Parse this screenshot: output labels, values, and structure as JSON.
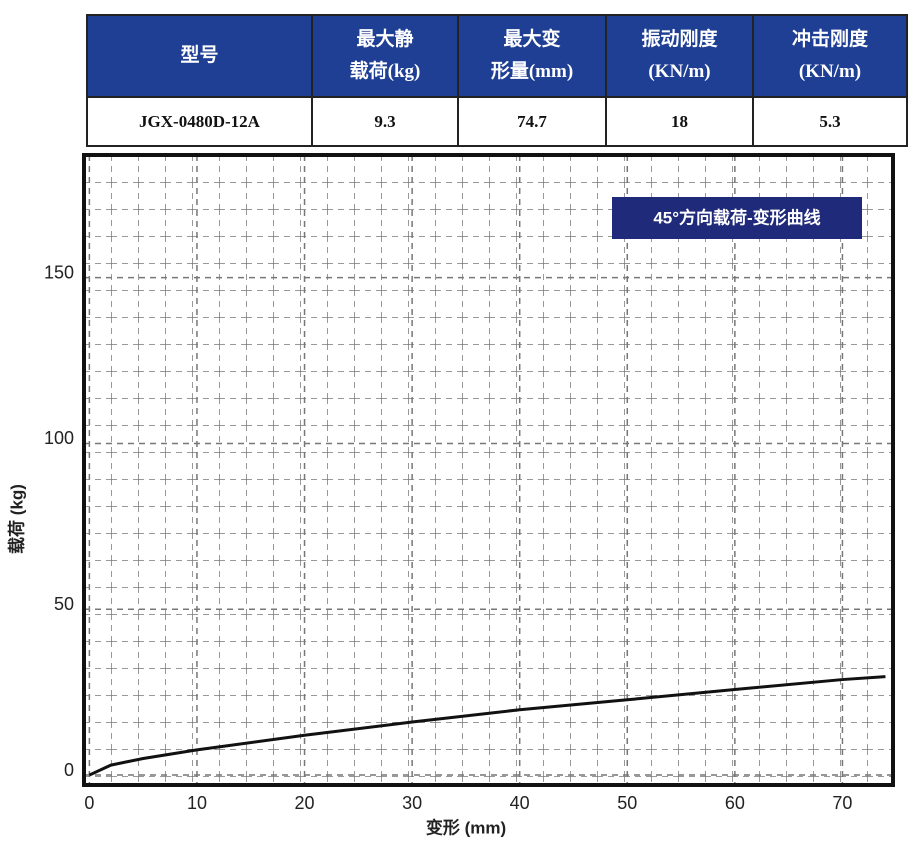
{
  "table": {
    "headers": [
      [
        "型号"
      ],
      [
        "最大静",
        "载荷(kg)"
      ],
      [
        "最大变",
        "形量(mm)"
      ],
      [
        "振动刚度",
        "(KN/m)"
      ],
      [
        "冲击刚度",
        "(KN/m)"
      ]
    ],
    "rows": [
      [
        "JGX-0480D-12A",
        "9.3",
        "74.7",
        "18",
        "5.3"
      ]
    ]
  },
  "chart_data": {
    "type": "line",
    "annotation": "45°方向载荷-变形曲线",
    "x_label": "变形 (mm)",
    "y_label": "载荷 (kg)",
    "series": [
      {
        "name": "45°方向载荷-变形曲线",
        "color": "#111111",
        "x": [
          0,
          2,
          5,
          10,
          20,
          30,
          40,
          50,
          60,
          70,
          74
        ],
        "values": [
          0,
          3,
          5,
          7.6,
          12,
          16,
          19.7,
          22.7,
          25.8,
          28.8,
          29.7
        ]
      }
    ],
    "xlim": [
      -0.5,
      74.7
    ],
    "xticks": [
      0,
      10,
      20,
      30,
      40,
      50,
      60,
      70
    ],
    "ylim": [
      -3,
      187
    ],
    "yticks": [
      0,
      50,
      100,
      150
    ],
    "grid": true
  }
}
